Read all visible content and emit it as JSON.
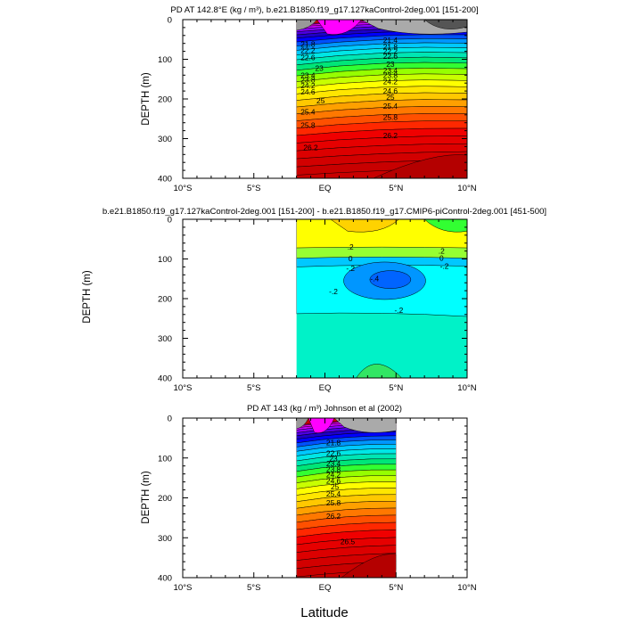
{
  "figure": {
    "shared_xlabel": "Latitude"
  },
  "chart_data": [
    {
      "type": "heatmap",
      "title": "PD AT 142.8°E (kg / m³), b.e21.B1850.f19_g17.127kaControl-2deg.001 [151-200]",
      "ylabel": "DEPTH (m)",
      "xlim": [
        -10,
        10
      ],
      "ylim": [
        400,
        0
      ],
      "y_reversed": true,
      "x_ticks": [
        -10,
        -5,
        0,
        5,
        10
      ],
      "x_tick_labels": [
        "10°S",
        "5°S",
        "EQ",
        "5°N",
        "10°N"
      ],
      "y_ticks": [
        0,
        100,
        200,
        300,
        400
      ],
      "y_tick_labels": [
        "0",
        "100",
        "200",
        "300",
        "400"
      ],
      "data_x_range": [
        -2,
        10
      ],
      "contour_labels": [
        {
          "text": "21.8",
          "x": -1.2,
          "y": 62
        },
        {
          "text": "22.2",
          "x": -1.2,
          "y": 78
        },
        {
          "text": "22.6",
          "x": -1.2,
          "y": 96
        },
        {
          "text": "23",
          "x": -0.4,
          "y": 122
        },
        {
          "text": "23.4",
          "x": -1.2,
          "y": 140
        },
        {
          "text": "23.8",
          "x": -1.2,
          "y": 152
        },
        {
          "text": "24.2",
          "x": -1.2,
          "y": 166
        },
        {
          "text": "24.6",
          "x": -1.2,
          "y": 182
        },
        {
          "text": "25",
          "x": -0.3,
          "y": 205
        },
        {
          "text": "25.4",
          "x": -1.2,
          "y": 233
        },
        {
          "text": "25.8",
          "x": -1.2,
          "y": 266
        },
        {
          "text": "26.2",
          "x": -1.0,
          "y": 322
        },
        {
          "text": "21.4",
          "x": 4.6,
          "y": 52
        },
        {
          "text": "21.8",
          "x": 4.6,
          "y": 68
        },
        {
          "text": "22.2",
          "x": 4.6,
          "y": 80
        },
        {
          "text": "22.6",
          "x": 4.6,
          "y": 92
        },
        {
          "text": "23",
          "x": 4.6,
          "y": 112
        },
        {
          "text": "23.4",
          "x": 4.6,
          "y": 128
        },
        {
          "text": "23.8",
          "x": 4.6,
          "y": 140
        },
        {
          "text": "24.2",
          "x": 4.6,
          "y": 156
        },
        {
          "text": "24.6",
          "x": 4.6,
          "y": 180
        },
        {
          "text": "25",
          "x": 4.6,
          "y": 196
        },
        {
          "text": "25.4",
          "x": 4.6,
          "y": 218
        },
        {
          "text": "25.8",
          "x": 4.6,
          "y": 246
        },
        {
          "text": "26.2",
          "x": 4.6,
          "y": 292
        }
      ]
    },
    {
      "type": "heatmap",
      "title": "b.e21.B1850.f19_g17.127kaControl-2deg.001 [151-200] - b.e21.B1850.f19_g17.CMIP6-piControl-2deg.001 [451-500]",
      "ylabel": "DEPTH (m)",
      "xlim": [
        -10,
        10
      ],
      "ylim": [
        400,
        0
      ],
      "y_reversed": true,
      "x_ticks": [
        -10,
        -5,
        0,
        5,
        10
      ],
      "x_tick_labels": [
        "10°S",
        "5°S",
        "EQ",
        "5°N",
        "10°N"
      ],
      "y_ticks": [
        0,
        100,
        200,
        300,
        400
      ],
      "y_tick_labels": [
        "0",
        "100",
        "200",
        "300",
        "400"
      ],
      "data_x_range": [
        -2,
        10
      ],
      "contour_labels": [
        {
          "text": ".2",
          "x": 1.8,
          "y": 70
        },
        {
          "text": "0",
          "x": 1.8,
          "y": 99
        },
        {
          "text": "-.2",
          "x": 1.8,
          "y": 124
        },
        {
          "text": ".2",
          "x": 8.2,
          "y": 80
        },
        {
          "text": "0",
          "x": 8.2,
          "y": 98
        },
        {
          "text": "-.2",
          "x": 8.4,
          "y": 118
        },
        {
          "text": "-.4",
          "x": 3.5,
          "y": 149
        },
        {
          "text": "-.2",
          "x": 0.6,
          "y": 182
        },
        {
          "text": "-.2",
          "x": 5.2,
          "y": 229
        }
      ]
    },
    {
      "type": "heatmap",
      "title": "PD AT 143 (kg / m³) Johnson et al (2002)",
      "ylabel": "DEPTH (m)",
      "xlim": [
        -10,
        10
      ],
      "ylim": [
        400,
        0
      ],
      "y_reversed": true,
      "x_ticks": [
        -10,
        -5,
        0,
        5,
        10
      ],
      "x_tick_labels": [
        "10°S",
        "5°S",
        "EQ",
        "5°N",
        "10°N"
      ],
      "y_ticks": [
        0,
        100,
        200,
        300,
        400
      ],
      "y_tick_labels": [
        "0",
        "100",
        "200",
        "300",
        "400"
      ],
      "data_x_range": [
        -2,
        5
      ],
      "contour_labels": [
        {
          "text": "21.8",
          "x": 0.6,
          "y": 62
        },
        {
          "text": "22.6",
          "x": 0.6,
          "y": 88
        },
        {
          "text": "23",
          "x": 0.6,
          "y": 102
        },
        {
          "text": "23.4",
          "x": 0.6,
          "y": 114
        },
        {
          "text": "23.8",
          "x": 0.6,
          "y": 128
        },
        {
          "text": "24.2",
          "x": 0.6,
          "y": 142
        },
        {
          "text": "24.6",
          "x": 0.6,
          "y": 158
        },
        {
          "text": "25",
          "x": 0.7,
          "y": 172
        },
        {
          "text": "25.4",
          "x": 0.6,
          "y": 190
        },
        {
          "text": "25.8",
          "x": 0.6,
          "y": 212
        },
        {
          "text": "26.2",
          "x": 0.6,
          "y": 246
        },
        {
          "text": "26.5",
          "x": 1.6,
          "y": 310
        }
      ]
    }
  ]
}
